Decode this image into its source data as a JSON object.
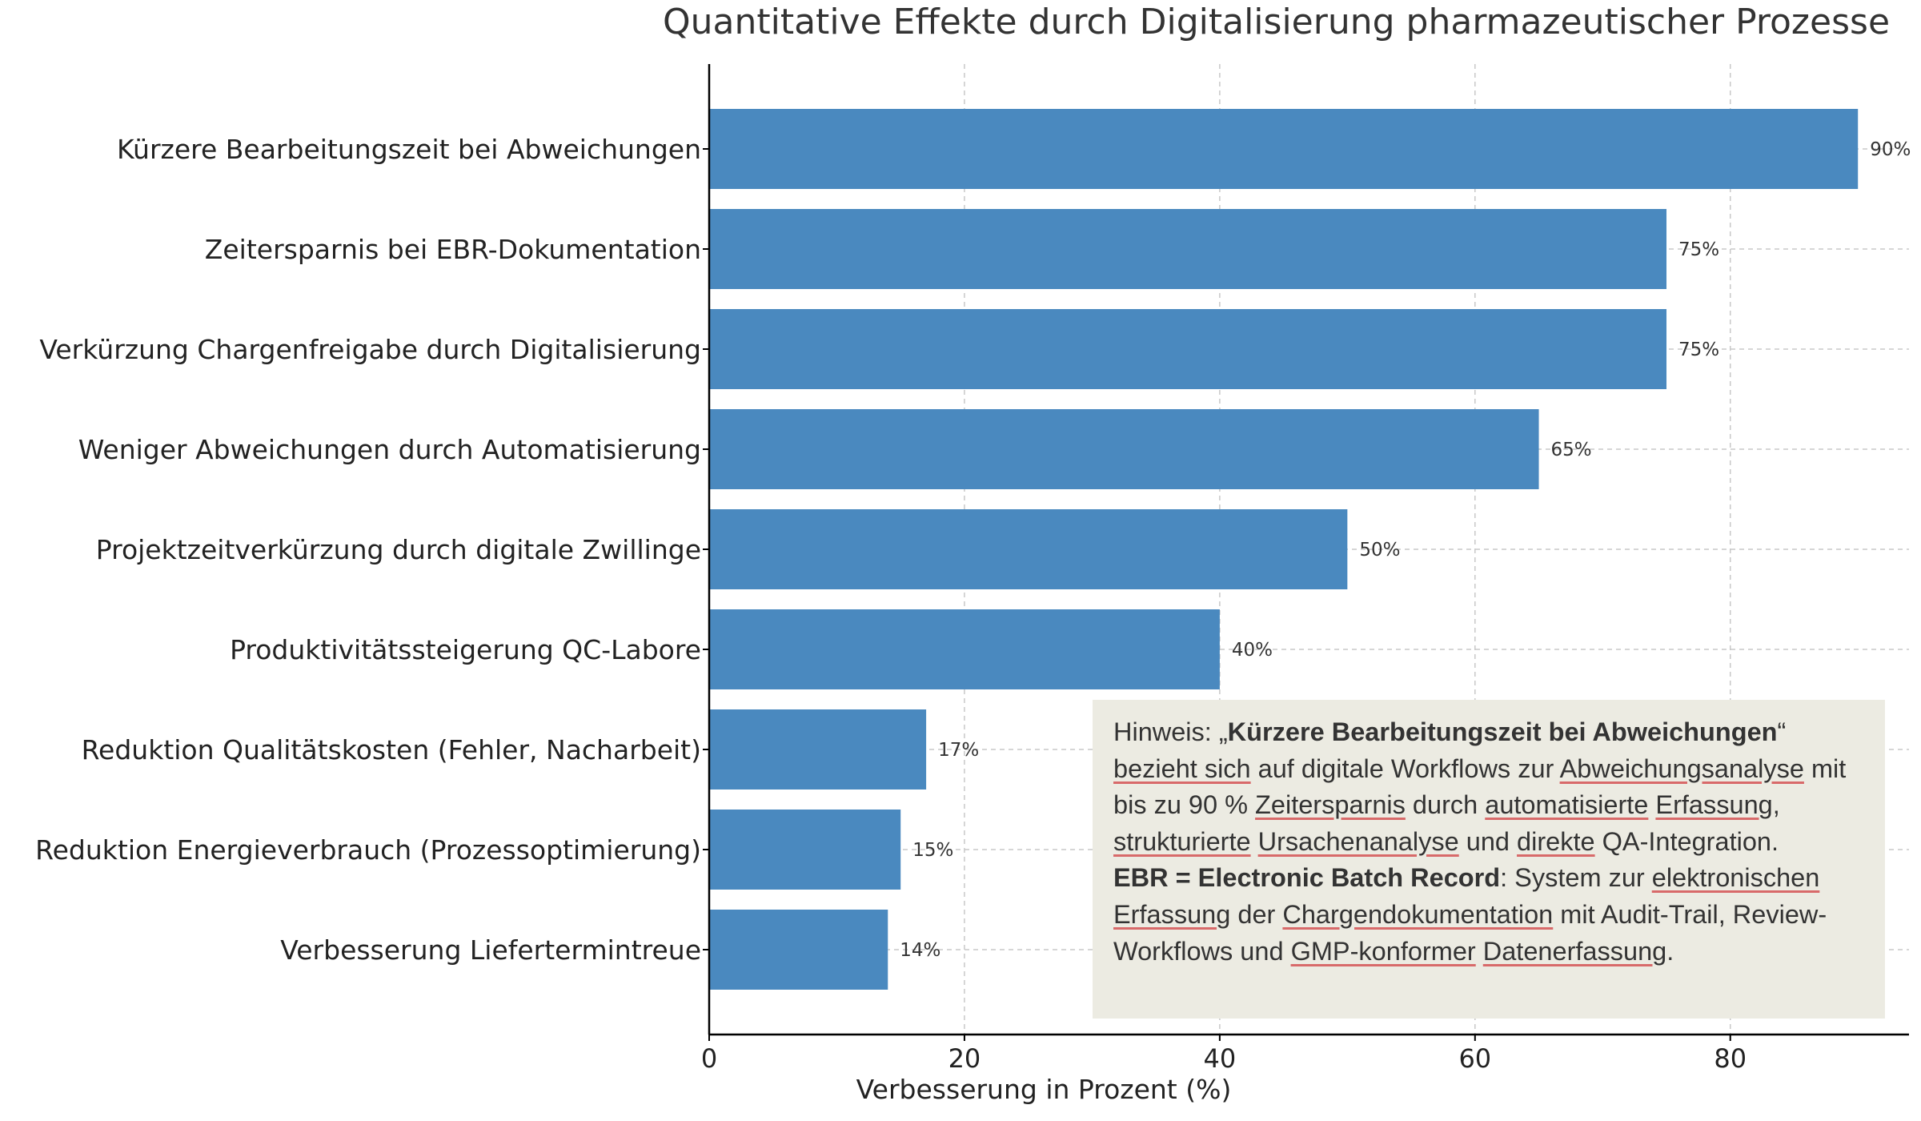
{
  "chart_data": {
    "type": "bar",
    "orientation": "horizontal",
    "title": "Quantitative Effekte durch Digitalisierung pharmazeutischer Prozesse",
    "xlabel": "Verbesserung in Prozent (%)",
    "ylabel": "",
    "xlim": [
      0,
      94
    ],
    "xticks": [
      0,
      20,
      40,
      60,
      80
    ],
    "grid": true,
    "bar_color": "#4a89bf",
    "categories": [
      "Kürzere Bearbeitungszeit bei Abweichungen",
      "Zeitersparnis bei EBR-Dokumentation",
      "Verkürzung Chargenfreigabe durch Digitalisierung",
      "Weniger Abweichungen durch Automatisierung",
      "Projektzeitverkürzung durch digitale Zwillinge",
      "Produktivitätssteigerung QC-Labore",
      "Reduktion Qualitätskosten (Fehler, Nacharbeit)",
      "Reduktion Energieverbrauch (Prozessoptimierung)",
      "Verbesserung Liefertermintreue"
    ],
    "values": [
      90,
      75,
      75,
      65,
      50,
      40,
      17,
      15,
      14
    ],
    "value_labels": [
      "90%",
      "75%",
      "75%",
      "65%",
      "50%",
      "40%",
      "17%",
      "15%",
      "14%"
    ]
  },
  "note": {
    "prefix": "Hinweis: „",
    "bold_term": "Kürzere Bearbeitungszeit bei Abweichungen",
    "p1_close": "“",
    "p1_u1": "bezieht sich",
    "p1_t1": " auf digitale Workflows zur ",
    "p1_u2": "Abweichungsanalyse",
    "p1_t2": " mit bis zu 90 % ",
    "p1_u3": "Zeitersparnis",
    "p1_t3": " durch ",
    "p1_u4": "automatisierte",
    "p1_t4": " ",
    "p1_u5": "Erfassung",
    "p1_t5": ", ",
    "p1_u6": "strukturierte",
    "p1_t6": " ",
    "p1_u7": "Ursachenanalyse",
    "p1_t7": " und ",
    "p1_u8": "direkte",
    "p1_t8": " QA-Integration.",
    "ebr_bold": "EBR = Electronic Batch Record",
    "p2_t1": ": System zur ",
    "p2_u1": "elektronischen",
    "p2_t2": " ",
    "p2_u2": "Erfassung",
    "p2_t3": " der ",
    "p2_u3": "Chargendokumentation",
    "p2_t4": " mit Audit-Trail, Review-Workflows und ",
    "p2_u4": "GMP-konformer",
    "p2_t5": " ",
    "p2_u5": "Datenerfassung",
    "p2_t6": "."
  }
}
